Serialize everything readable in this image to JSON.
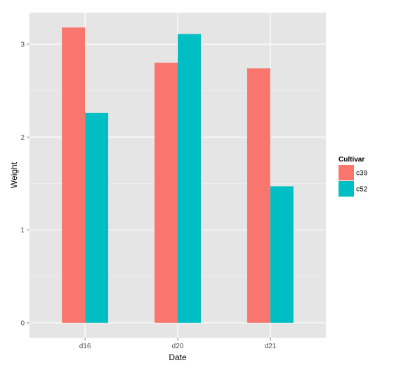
{
  "chart_data": {
    "type": "bar",
    "categories": [
      "d16",
      "d20",
      "d21"
    ],
    "series": [
      {
        "name": "c39",
        "values": [
          3.18,
          2.8,
          2.74
        ],
        "color": "#F8766D"
      },
      {
        "name": "c52",
        "values": [
          2.26,
          3.11,
          1.47
        ],
        "color": "#00BFC4"
      }
    ],
    "xlabel": "Date",
    "ylabel": "Weight",
    "yticks": [
      0,
      1,
      2,
      3
    ],
    "ylim": [
      -0.16,
      3.34
    ],
    "legend": {
      "title": "Cultivar",
      "placement": "right"
    },
    "grid": true,
    "panel_background": "#E5E5E5",
    "grid_major_color": "#FFFFFF",
    "grid_minor_color": "#F2F2F2"
  }
}
